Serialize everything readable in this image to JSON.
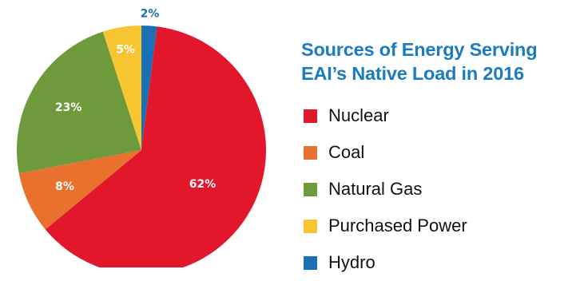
{
  "chart_data": {
    "type": "pie",
    "title": "Sources of Energy Serving EAI’s Native Load in 2016",
    "categories": [
      "Hydro",
      "Nuclear",
      "Coal",
      "Natural Gas",
      "Purchased Power"
    ],
    "values": [
      2,
      62,
      8,
      23,
      5
    ],
    "value_labels": [
      "2%",
      "62%",
      "8%",
      "23%",
      "5%"
    ],
    "colors": [
      "#1a70b5",
      "#e2172b",
      "#e9712d",
      "#6e9a3c",
      "#f7c530"
    ],
    "legend": {
      "placement": "right",
      "items": [
        {
          "label": "Nuclear",
          "color": "#e2172b"
        },
        {
          "label": "Coal",
          "color": "#e9712d"
        },
        {
          "label": "Natural Gas",
          "color": "#6e9a3c"
        },
        {
          "label": "Purchased Power",
          "color": "#f7c530"
        },
        {
          "label": "Hydro",
          "color": "#1a70b5"
        }
      ]
    }
  }
}
